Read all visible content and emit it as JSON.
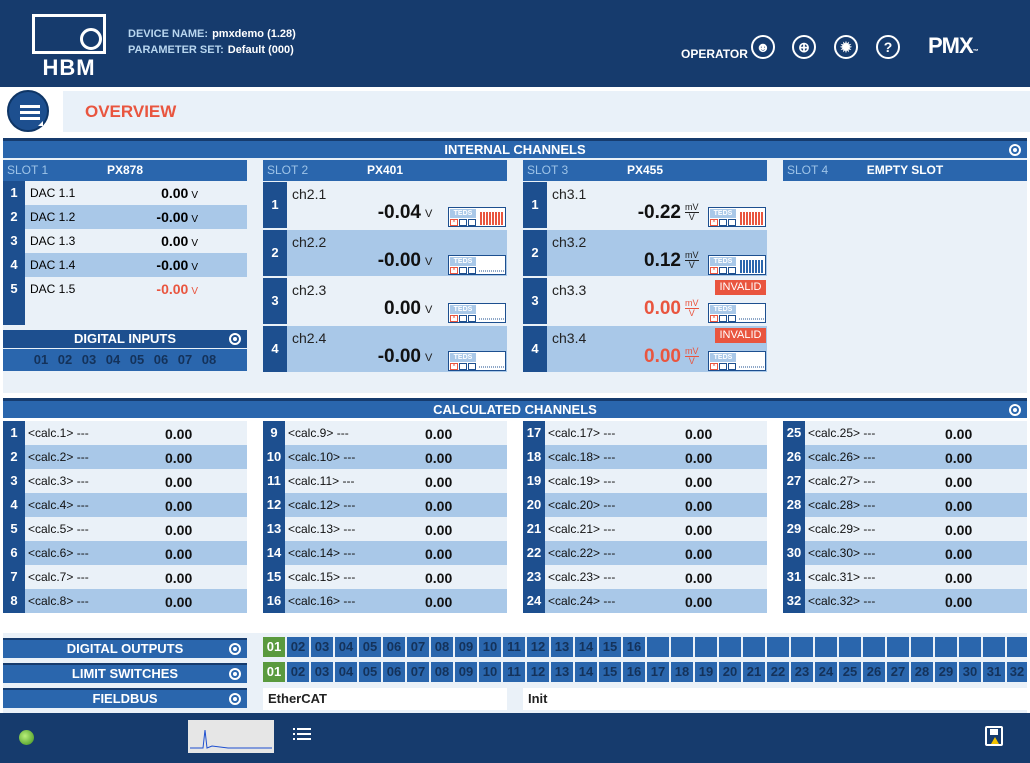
{
  "header": {
    "logo_text": "HBM",
    "device_label": "DEVICE NAME:",
    "device_value": "pmxdemo",
    "device_version": "(1.28)",
    "param_label": "PARAMETER SET:",
    "param_value": "Default (000)",
    "user_role": "OPERATOR",
    "brand": "PMX",
    "brand_tm": "™",
    "icons": [
      "user-icon",
      "globe-icon",
      "brightness-icon",
      "help-icon"
    ]
  },
  "page": {
    "title": "OVERVIEW"
  },
  "internal": {
    "title": "INTERNAL CHANNELS",
    "slots": [
      {
        "slot": "SLOT 1",
        "module": "PX878"
      },
      {
        "slot": "SLOT 2",
        "module": "PX401"
      },
      {
        "slot": "SLOT 3",
        "module": "PX455"
      },
      {
        "slot": "SLOT 4",
        "module": "EMPTY SLOT"
      }
    ],
    "dac": [
      {
        "num": "1",
        "name": "DAC 1.1",
        "value": "0.00",
        "unit": "V"
      },
      {
        "num": "2",
        "name": "DAC 1.2",
        "value": "-0.00",
        "unit": "V"
      },
      {
        "num": "3",
        "name": "DAC 1.3",
        "value": "0.00",
        "unit": "V"
      },
      {
        "num": "4",
        "name": "DAC 1.4",
        "value": "-0.00",
        "unit": "V"
      },
      {
        "num": "5",
        "name": "DAC 1.5",
        "value": "-0.00",
        "unit": "V"
      }
    ],
    "digital_inputs": {
      "title": "DIGITAL INPUTS",
      "cells": [
        "01",
        "02",
        "03",
        "04",
        "05",
        "06",
        "07",
        "08"
      ]
    },
    "slot2": [
      {
        "num": "1",
        "name": "ch2.1",
        "value": "-0.04",
        "unit": "V",
        "teds": "TEDS"
      },
      {
        "num": "2",
        "name": "ch2.2",
        "value": "-0.00",
        "unit": "V",
        "teds": "TEDS"
      },
      {
        "num": "3",
        "name": "ch2.3",
        "value": "0.00",
        "unit": "V",
        "teds": "TEDS"
      },
      {
        "num": "4",
        "name": "ch2.4",
        "value": "-0.00",
        "unit": "V",
        "teds": "TEDS"
      }
    ],
    "slot3": [
      {
        "num": "1",
        "name": "ch3.1",
        "value": "-0.22",
        "unit_top": "mV",
        "unit_bot": "V",
        "teds": "TEDS"
      },
      {
        "num": "2",
        "name": "ch3.2",
        "value": "0.12",
        "unit_top": "mV",
        "unit_bot": "V",
        "teds": "TEDS"
      },
      {
        "num": "3",
        "name": "ch3.3",
        "value": "0.00",
        "unit_top": "mV",
        "unit_bot": "V",
        "teds": "TEDS",
        "status": "INVALID"
      },
      {
        "num": "4",
        "name": "ch3.4",
        "value": "0.00",
        "unit_top": "mV",
        "unit_bot": "V",
        "teds": "TEDS",
        "status": "INVALID"
      }
    ]
  },
  "calculated": {
    "title": "CALCULATED CHANNELS",
    "channels": [
      {
        "num": "1",
        "name": "<calc.1> ---",
        "value": "0.00"
      },
      {
        "num": "2",
        "name": "<calc.2> ---",
        "value": "0.00"
      },
      {
        "num": "3",
        "name": "<calc.3> ---",
        "value": "0.00"
      },
      {
        "num": "4",
        "name": "<calc.4> ---",
        "value": "0.00"
      },
      {
        "num": "5",
        "name": "<calc.5> ---",
        "value": "0.00"
      },
      {
        "num": "6",
        "name": "<calc.6> ---",
        "value": "0.00"
      },
      {
        "num": "7",
        "name": "<calc.7> ---",
        "value": "0.00"
      },
      {
        "num": "8",
        "name": "<calc.8> ---",
        "value": "0.00"
      },
      {
        "num": "9",
        "name": "<calc.9> ---",
        "value": "0.00"
      },
      {
        "num": "10",
        "name": "<calc.10> ---",
        "value": "0.00"
      },
      {
        "num": "11",
        "name": "<calc.11> ---",
        "value": "0.00"
      },
      {
        "num": "12",
        "name": "<calc.12> ---",
        "value": "0.00"
      },
      {
        "num": "13",
        "name": "<calc.13> ---",
        "value": "0.00"
      },
      {
        "num": "14",
        "name": "<calc.14> ---",
        "value": "0.00"
      },
      {
        "num": "15",
        "name": "<calc.15> ---",
        "value": "0.00"
      },
      {
        "num": "16",
        "name": "<calc.16> ---",
        "value": "0.00"
      },
      {
        "num": "17",
        "name": "<calc.17> ---",
        "value": "0.00"
      },
      {
        "num": "18",
        "name": "<calc.18> ---",
        "value": "0.00"
      },
      {
        "num": "19",
        "name": "<calc.19> ---",
        "value": "0.00"
      },
      {
        "num": "20",
        "name": "<calc.20> ---",
        "value": "0.00"
      },
      {
        "num": "21",
        "name": "<calc.21> ---",
        "value": "0.00"
      },
      {
        "num": "22",
        "name": "<calc.22> ---",
        "value": "0.00"
      },
      {
        "num": "23",
        "name": "<calc.23> ---",
        "value": "0.00"
      },
      {
        "num": "24",
        "name": "<calc.24> ---",
        "value": "0.00"
      },
      {
        "num": "25",
        "name": "<calc.25> ---",
        "value": "0.00"
      },
      {
        "num": "26",
        "name": "<calc.26> ---",
        "value": "0.00"
      },
      {
        "num": "27",
        "name": "<calc.27> ---",
        "value": "0.00"
      },
      {
        "num": "28",
        "name": "<calc.28> ---",
        "value": "0.00"
      },
      {
        "num": "29",
        "name": "<calc.29> ---",
        "value": "0.00"
      },
      {
        "num": "30",
        "name": "<calc.30> ---",
        "value": "0.00"
      },
      {
        "num": "31",
        "name": "<calc.31> ---",
        "value": "0.00"
      },
      {
        "num": "32",
        "name": "<calc.32> ---",
        "value": "0.00"
      }
    ]
  },
  "digital_outputs": {
    "title": "DIGITAL OUTPUTS",
    "cells": [
      "01",
      "02",
      "03",
      "04",
      "05",
      "06",
      "07",
      "08",
      "09",
      "10",
      "11",
      "12",
      "13",
      "14",
      "15",
      "16"
    ],
    "active": [
      "01"
    ]
  },
  "limit_switches": {
    "title": "LIMIT SWITCHES",
    "cells": [
      "01",
      "02",
      "03",
      "04",
      "05",
      "06",
      "07",
      "08",
      "09",
      "10",
      "11",
      "12",
      "13",
      "14",
      "15",
      "16",
      "17",
      "18",
      "19",
      "20",
      "21",
      "22",
      "23",
      "24",
      "25",
      "26",
      "27",
      "28",
      "29",
      "30",
      "31",
      "32"
    ],
    "active": [
      "01"
    ]
  },
  "fieldbus": {
    "title": "FIELDBUS",
    "protocol": "EtherCAT",
    "state": "Init"
  },
  "colors": {
    "header_bg": "#163b6d",
    "accent_blue": "#2a66ad",
    "row_light": "#eaf1f8",
    "row_blue": "#a9c8e8",
    "alert": "#e9553f",
    "active_green": "#5a9a3e"
  },
  "footer": {
    "status_led": "green",
    "icons": [
      "status-led",
      "signal-preview",
      "menu-list-icon",
      "save-warning-icon"
    ]
  }
}
